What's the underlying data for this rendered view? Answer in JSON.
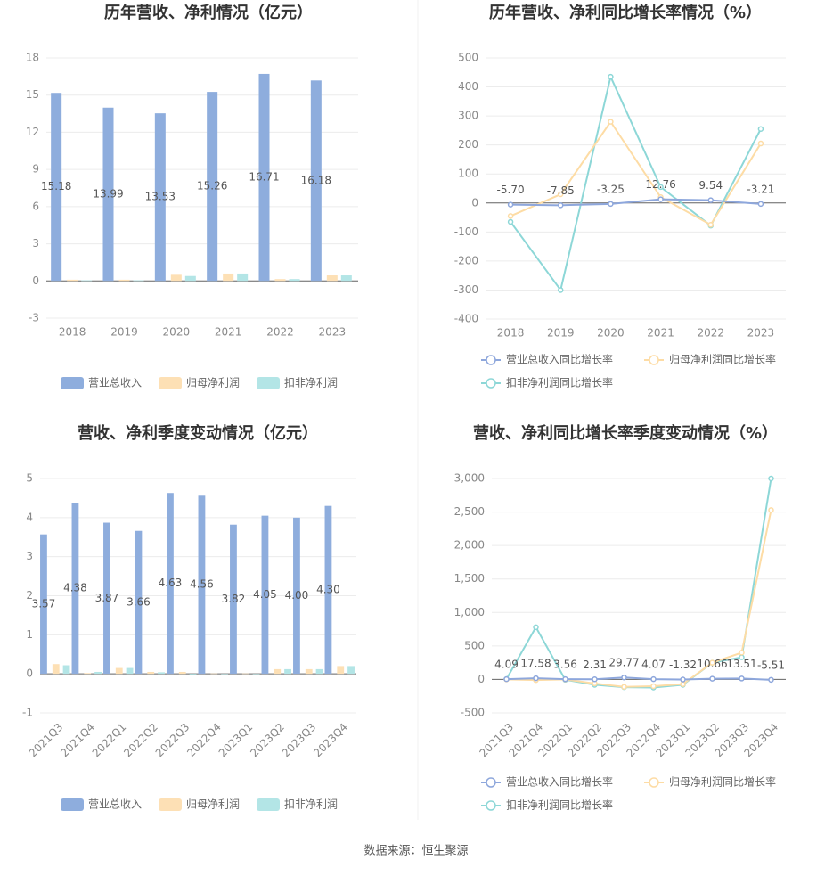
{
  "chart_data": [
    {
      "type": "bar",
      "title": "历年营收、净利情况（亿元）",
      "categories": [
        "2018",
        "2019",
        "2020",
        "2021",
        "2022",
        "2023"
      ],
      "series": [
        {
          "name": "营业总收入",
          "color": "#8eaddd",
          "values": [
            15.18,
            13.99,
            13.53,
            15.26,
            16.71,
            16.18
          ],
          "value_labels": [
            "15.18",
            "13.99",
            "13.53",
            "15.26",
            "16.71",
            "16.18"
          ]
        },
        {
          "name": "归母净利润",
          "color": "#fde0b5",
          "values": [
            0.1,
            0.1,
            0.5,
            0.6,
            0.15,
            0.45
          ]
        },
        {
          "name": "扣非净利润",
          "color": "#b3e5e6",
          "values": [
            0.05,
            0.05,
            0.4,
            0.6,
            0.15,
            0.45
          ]
        }
      ],
      "ylim": [
        -3,
        18
      ],
      "yticks": [
        -3,
        0,
        3,
        6,
        9,
        12,
        15,
        18
      ],
      "grid": true,
      "legend": "bottom"
    },
    {
      "type": "line",
      "title": "历年营收、净利同比增长率情况（%）",
      "categories": [
        "2018",
        "2019",
        "2020",
        "2021",
        "2022",
        "2023"
      ],
      "series": [
        {
          "name": "营业总收入同比增长率",
          "color": "#8ea7dc",
          "values": [
            -5.7,
            -7.85,
            -3.25,
            12.76,
            9.54,
            -3.21
          ],
          "value_labels": [
            "-5.70",
            "-7.85",
            "-3.25",
            "12.76",
            "9.54",
            "-3.21"
          ]
        },
        {
          "name": "归母净利润同比增长率",
          "color": "#fddca5",
          "values": [
            -45,
            30,
            280,
            20,
            -75,
            205
          ]
        },
        {
          "name": "扣非净利润同比增长率",
          "color": "#8dd7d7",
          "values": [
            -65,
            -300,
            435,
            55,
            -78,
            255
          ]
        }
      ],
      "ylim": [
        -400,
        500
      ],
      "yticks": [
        -400,
        -300,
        -200,
        -100,
        0,
        100,
        200,
        300,
        400,
        500
      ],
      "grid": true,
      "legend": "bottom"
    },
    {
      "type": "bar",
      "title": "营收、净利季度变动情况（亿元）",
      "categories": [
        "2021Q3",
        "2021Q4",
        "2022Q1",
        "2022Q2",
        "2022Q3",
        "2022Q4",
        "2023Q1",
        "2023Q2",
        "2023Q3",
        "2023Q4"
      ],
      "series": [
        {
          "name": "营业总收入",
          "color": "#8eaddd",
          "values": [
            3.57,
            4.38,
            3.87,
            3.66,
            4.63,
            4.56,
            3.82,
            4.05,
            4.0,
            4.3
          ],
          "value_labels": [
            "3.57",
            "4.38",
            "3.87",
            "3.66",
            "4.63",
            "4.56",
            "3.82",
            "4.05",
            "4.00",
            "4.30"
          ]
        },
        {
          "name": "归母净利润",
          "color": "#fde0b5",
          "values": [
            0.25,
            0.02,
            0.15,
            0.05,
            0.05,
            0.01,
            0.01,
            0.12,
            0.12,
            0.2
          ]
        },
        {
          "name": "扣非净利润",
          "color": "#b3e5e6",
          "values": [
            0.22,
            0.05,
            0.15,
            0.04,
            -0.03,
            0.0,
            0.0,
            0.12,
            0.12,
            0.2
          ]
        }
      ],
      "ylim": [
        -1,
        5
      ],
      "yticks": [
        -1,
        0,
        1,
        2,
        3,
        4,
        5
      ],
      "grid": true,
      "legend": "bottom"
    },
    {
      "type": "line",
      "title": "营收、净利同比增长率季度变动情况（%）",
      "categories": [
        "2021Q3",
        "2021Q4",
        "2022Q1",
        "2022Q2",
        "2022Q3",
        "2022Q4",
        "2023Q1",
        "2023Q2",
        "2023Q3",
        "2023Q4"
      ],
      "series": [
        {
          "name": "营业总收入同比增长率",
          "color": "#8ea7dc",
          "values": [
            4.09,
            17.58,
            3.56,
            2.31,
            29.77,
            4.07,
            -1.32,
            10.66,
            13.51,
            -5.51
          ],
          "value_labels": [
            "4.09",
            "17.58",
            "3.56",
            "2.31",
            "29.77",
            "4.07",
            "-1.32",
            "10.66",
            "13.51",
            "-5.51"
          ]
        },
        {
          "name": "归母净利润同比增长率",
          "color": "#fddca5",
          "values": [
            0,
            -10,
            0,
            -60,
            -110,
            -100,
            -70,
            250,
            400,
            2530
          ]
        },
        {
          "name": "扣非净利润同比增长率",
          "color": "#8dd7d7",
          "values": [
            5,
            780,
            -5,
            -80,
            -115,
            -120,
            -80,
            250,
            330,
            3000
          ]
        }
      ],
      "ylim": [
        -500,
        3000
      ],
      "yticks": [
        -500,
        0,
        500,
        {
          "value": 1000,
          "label": "1,000"
        },
        {
          "value": 1500,
          "label": "1,500"
        },
        {
          "value": 2000,
          "label": "2,000"
        },
        {
          "value": 2500,
          "label": "2,500"
        },
        {
          "value": 3000,
          "label": "3,000"
        }
      ],
      "grid": true,
      "legend": "bottom"
    }
  ],
  "source": "数据来源：恒生聚源"
}
